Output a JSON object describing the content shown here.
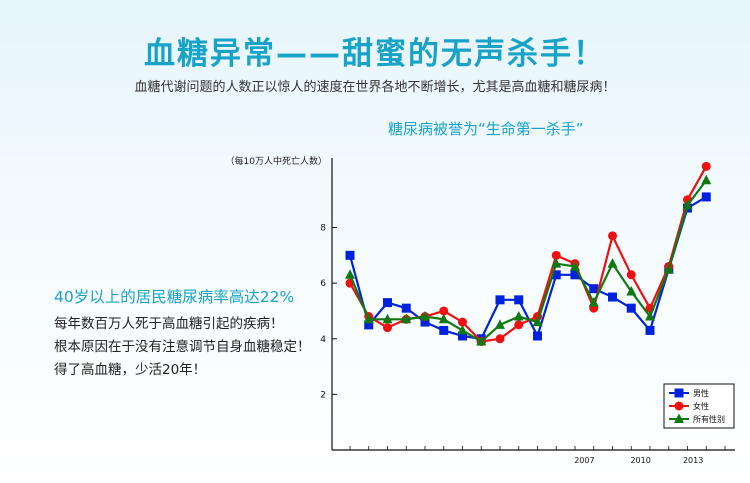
{
  "header": {
    "title": "血糖异常——甜蜜的无声杀手！",
    "subtitle": "血糖代谢问题的人数正以惊人的速度在世界各地不断增长，尤其是高血糖和糖尿病！"
  },
  "chart_heading": "糖尿病被誉为“生命第一杀手”",
  "left": {
    "highlight": "40岁以上的居民糖尿病率高达22%",
    "lines": [
      "每年数百万人死于高血糖引起的疾病！",
      "根本原因在于没有注意调节自身血糖稳定！",
      "得了高血糖，少活20年！"
    ]
  },
  "chart_data": {
    "type": "line",
    "ylabel": "（每10万人中死亡人数）",
    "ylim": [
      0,
      10.5
    ],
    "yticks": [
      2,
      4,
      6,
      8
    ],
    "x": [
      1994,
      1995,
      1996,
      1997,
      1998,
      1999,
      2000,
      2001,
      2002,
      2003,
      2004,
      2005,
      2006,
      2007,
      2008,
      2009,
      2010,
      2011,
      2012,
      2013,
      2014
    ],
    "xlim": [
      1994,
      2014
    ],
    "xtick_labels": [
      {
        "x": 2006.5,
        "label": "2007"
      },
      {
        "x": 2009.5,
        "label": "2010"
      },
      {
        "x": 2012.3,
        "label": "2013"
      }
    ],
    "series": [
      {
        "name": "男性",
        "color": "#0022dd",
        "marker": "square",
        "values": [
          7.0,
          4.5,
          5.3,
          5.1,
          4.6,
          4.3,
          4.1,
          4.0,
          5.4,
          5.4,
          4.1,
          6.3,
          6.3,
          5.8,
          5.5,
          5.1,
          4.3,
          6.5,
          8.7,
          9.1,
          null
        ]
      },
      {
        "name": "女性",
        "color": "#ee1111",
        "marker": "circle",
        "values": [
          6.0,
          4.8,
          4.4,
          4.7,
          4.8,
          5.0,
          4.6,
          3.9,
          4.0,
          4.5,
          4.8,
          7.0,
          6.7,
          5.1,
          7.7,
          6.3,
          5.1,
          6.6,
          9.0,
          10.2,
          null
        ]
      },
      {
        "name": "所有性别",
        "color": "#117711",
        "marker": "triangle",
        "values": [
          6.3,
          4.7,
          4.7,
          4.7,
          4.8,
          4.7,
          4.3,
          3.9,
          4.5,
          4.8,
          4.6,
          6.7,
          6.6,
          5.3,
          6.7,
          5.7,
          4.8,
          6.5,
          8.8,
          9.7,
          null
        ]
      }
    ],
    "legend_position": "bottom-right",
    "grid": false
  }
}
